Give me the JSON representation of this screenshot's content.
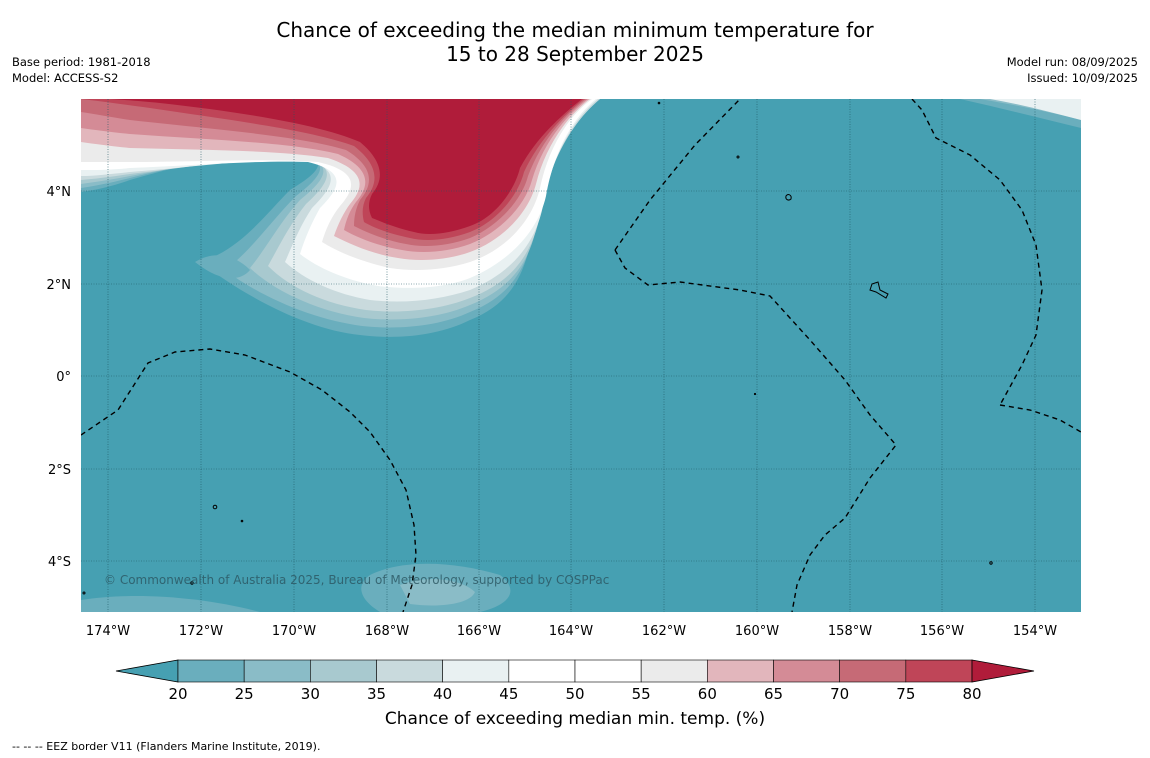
{
  "title": {
    "line1": "Chance of exceeding the median minimum temperature for",
    "line2": "15 to 28 September 2025"
  },
  "meta_left": [
    "Base period: 1981-2018",
    "Model: ACCESS-S2"
  ],
  "meta_right": [
    "Model run: 08/09/2025",
    "Issued: 10/09/2025"
  ],
  "x_ticks": [
    "174°W",
    "172°W",
    "170°W",
    "168°W",
    "166°W",
    "164°W",
    "162°W",
    "160°W",
    "158°W",
    "156°W",
    "154°W"
  ],
  "y_ticks": [
    "4°N",
    "2°N",
    "0°",
    "2°S",
    "4°S"
  ],
  "credit": "© Commonwealth of Australia 2025, Bureau of Meteorology, supported by COSPPac",
  "colorbar": {
    "ticks": [
      "20",
      "25",
      "30",
      "35",
      "40",
      "45",
      "50",
      "55",
      "60",
      "65",
      "70",
      "75",
      "80"
    ],
    "label": "Chance of exceeding median min. temp. (%)",
    "under_color": "#46a0b2",
    "over_color": "#b01c3a",
    "colors": [
      "#6aaebd",
      "#8abcc7",
      "#a8c9cf",
      "#c9dadd",
      "#e9f1f2",
      "#ffffff",
      "#ffffff",
      "#ebebeb",
      "#e2b6bc",
      "#d48b96",
      "#c66a76",
      "#bf4558"
    ]
  },
  "footnote": "--  --  -- EEZ border V11 (Flanders Marine Institute, 2019)."
}
